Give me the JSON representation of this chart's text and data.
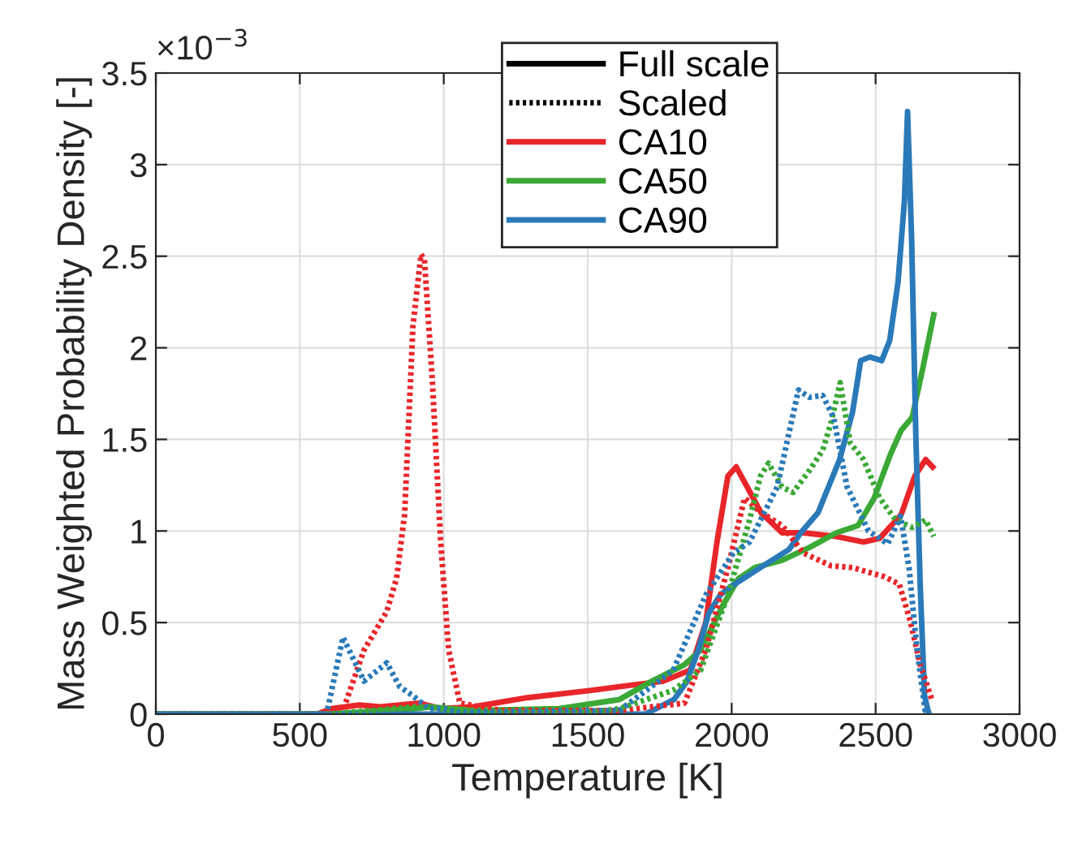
{
  "chart_data": {
    "type": "line",
    "xlabel": "Temperature [K]",
    "ylabel": "Mass Weighted Probability Density [-]",
    "annotations": [
      "×10$^{−3}$"
    ],
    "xlim": [
      0,
      3000
    ],
    "xticks": [
      0,
      500,
      1000,
      1500,
      2000,
      2500,
      3000
    ],
    "ylim": [
      0,
      3.5
    ],
    "yticks": [
      0,
      0.5,
      1,
      1.5,
      2,
      2.5,
      3,
      3.5
    ],
    "grid": true,
    "legend": "top",
    "marker": "none",
    "series": [
      {
        "name": "Full scale",
        "color": "#000000",
        "line_style": "solid"
      },
      {
        "name": "Scaled",
        "color": "#000000",
        "line_style": "dotted"
      },
      {
        "name": "CA10",
        "color": "#e8262a",
        "line_style": "solid",
        "x": [
          0,
          560,
          610,
          706,
          780,
          915,
          989,
          1102,
          1290,
          1514,
          1610,
          1762,
          1856,
          1910,
          1949,
          1987,
          2016,
          2054,
          2102,
          2175,
          2249,
          2364,
          2458,
          2514,
          2589,
          2636,
          2674,
          2698
        ],
        "values": [
          0,
          0,
          0.03,
          0.05,
          0.04,
          0.06,
          0.03,
          0.04,
          0.09,
          0.13,
          0.15,
          0.18,
          0.24,
          0.5,
          0.94,
          1.3,
          1.35,
          1.24,
          1.1,
          0.99,
          0.99,
          0.97,
          0.94,
          0.96,
          1.09,
          1.3,
          1.39,
          1.35
        ]
      },
      {
        "name": "CA50",
        "color": "#3aa935",
        "line_style": "solid",
        "x": [
          0,
          600,
          900,
          950,
          1100,
          1400,
          1610,
          1723,
          1836,
          1892,
          1968,
          2024,
          2081,
          2175,
          2270,
          2364,
          2439,
          2495,
          2552,
          2589,
          2627,
          2664,
          2702
        ],
        "values": [
          0,
          0,
          0.03,
          0.04,
          0.02,
          0.03,
          0.08,
          0.18,
          0.27,
          0.35,
          0.59,
          0.74,
          0.8,
          0.84,
          0.91,
          0.99,
          1.03,
          1.18,
          1.42,
          1.55,
          1.62,
          1.89,
          2.18
        ]
      },
      {
        "name": "CA90",
        "color": "#2a7ab9",
        "line_style": "solid",
        "x": [
          0,
          1700,
          1800,
          1845,
          1884,
          1920,
          1960,
          2000,
          2050,
          2100,
          2200,
          2240,
          2300,
          2375,
          2420,
          2448,
          2480,
          2521,
          2549,
          2578,
          2600,
          2611,
          2625,
          2640,
          2655,
          2670,
          2685
        ],
        "values": [
          0,
          0,
          0.08,
          0.18,
          0.35,
          0.55,
          0.65,
          0.7,
          0.75,
          0.8,
          0.9,
          0.99,
          1.1,
          1.39,
          1.65,
          1.93,
          1.95,
          1.93,
          2.04,
          2.36,
          2.8,
          3.29,
          2.6,
          1.5,
          0.7,
          0.1,
          0
        ]
      },
      {
        "color": "#e8262a",
        "line_style": "dotted",
        "x": [
          0,
          600,
          650,
          723,
          802,
          836,
          864,
          893,
          921,
          933,
          960,
          989,
          1017,
          1056,
          1200,
          1610,
          1836,
          1910,
          1987,
          2045,
          2102,
          2175,
          2249,
          2345,
          2420,
          2531,
          2582,
          2620,
          2655,
          2695
        ],
        "values": [
          0,
          0,
          0.02,
          0.35,
          0.56,
          0.74,
          1.09,
          2.12,
          2.51,
          2.48,
          1.83,
          0.95,
          0.35,
          0.06,
          0.02,
          0.02,
          0.06,
          0.35,
          0.8,
          1.18,
          1.1,
          1.03,
          0.88,
          0.81,
          0.8,
          0.75,
          0.71,
          0.51,
          0.27,
          0.08
        ]
      },
      {
        "color": "#3aa935",
        "line_style": "dotted",
        "x": [
          0,
          600,
          900,
          950,
          1050,
          1500,
          1610,
          1797,
          1892,
          1987,
          2062,
          2100,
          2128,
          2175,
          2213,
          2270,
          2316,
          2345,
          2377,
          2412,
          2458,
          2514,
          2570,
          2627,
          2674,
          2702
        ],
        "values": [
          0,
          0,
          0.04,
          0.04,
          0.01,
          0.01,
          0.03,
          0.13,
          0.24,
          0.65,
          1.06,
          1.3,
          1.37,
          1.24,
          1.21,
          1.33,
          1.44,
          1.59,
          1.81,
          1.48,
          1.39,
          1.18,
          1.06,
          1.02,
          1.06,
          0.97
        ]
      },
      {
        "color": "#2a7ab9",
        "line_style": "dotted",
        "x": [
          0,
          593,
          650,
          723,
          802,
          847,
          893,
          949,
          1000,
          1050,
          1610,
          1797,
          1910,
          2006,
          2062,
          2158,
          2232,
          2270,
          2316,
          2354,
          2401,
          2475,
          2542,
          2587,
          2616,
          2644,
          2672,
          2690
        ],
        "values": [
          0,
          0,
          0.42,
          0.18,
          0.28,
          0.15,
          0.1,
          0.03,
          0.03,
          0.01,
          0.02,
          0.24,
          0.65,
          0.88,
          0.94,
          1.24,
          1.77,
          1.73,
          1.74,
          1.62,
          1.24,
          1.0,
          0.93,
          1.08,
          0.8,
          0.35,
          0.02,
          0
        ]
      }
    ]
  }
}
